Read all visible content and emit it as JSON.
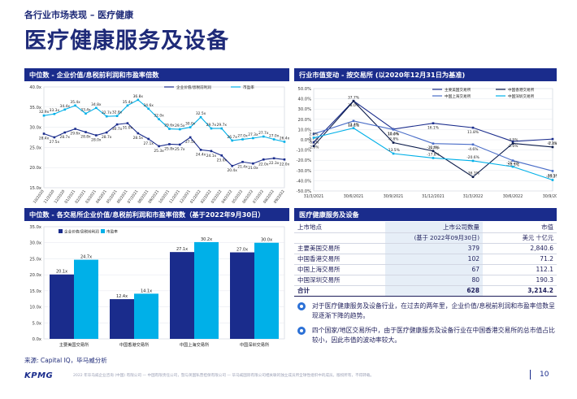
{
  "header": {
    "kicker": "各行业市场表现 – 医疗健康",
    "title": "医疗健康服务及设备"
  },
  "panels": {
    "p1_title": "中位数 - 企业价值/息税前利润和市盈率倍数",
    "p2_title": "行业市值变动 - 按交易所 (以2020年12月31日为基准)",
    "p3_title": "中位数 - 各交易所企业价值/息税前利润和市盈率倍数（基于2022年9月30日）",
    "p4_title": "医疗健康服务及设备"
  },
  "chart_data": [
    {
      "type": "line",
      "title": "",
      "ylim": [
        15,
        40
      ],
      "yticks": [
        "15.0x",
        "20.0x",
        "25.0x",
        "30.0x",
        "35.0x",
        "40.0x"
      ],
      "categories": [
        "10/2020",
        "11/2020",
        "12/2020",
        "01/2021",
        "02/2021",
        "03/2021",
        "04/2021",
        "05/2021",
        "06/2021",
        "07/2021",
        "08/2021",
        "09/2021",
        "10/2021",
        "11/2021",
        "12/2021",
        "01/2022",
        "02/2022",
        "03/2022",
        "04/2022",
        "05/2022",
        "06/2022",
        "07/2022",
        "08/2022",
        "09/2022"
      ],
      "series": [
        {
          "name": "企业价值/息税前利润",
          "color": "#1a2c8c",
          "values": [
            28.4,
            27.5,
            28.7,
            29.6,
            28.8,
            28.0,
            28.7,
            30.7,
            31.0,
            28.5,
            27.1,
            25.3,
            25.8,
            25.7,
            27.5,
            24.4,
            24.1,
            23.0,
            20.4,
            21.4,
            21.0,
            22.0,
            22.3,
            22.0
          ],
          "labels": [
            "28.4x",
            "27.5x",
            "28.7x",
            "29.6x",
            "28.8x",
            "28.0x",
            "28.7x",
            "30.7x",
            "31.0x",
            "28.5x",
            "27.1x",
            "25.3x",
            "25.8x",
            "25.7x",
            "27.5x",
            "24.4x",
            "24.1x",
            "23.0x",
            "20.4x",
            "21.4x",
            "21.0x",
            "22.0x",
            "22.3x",
            "22.0x"
          ]
        },
        {
          "name": "市盈率",
          "color": "#00b0e8",
          "values": [
            32.9,
            33.3,
            34.4,
            35.4,
            33.4,
            34.8,
            32.7,
            32.8,
            35.4,
            36.8,
            34.6,
            32.0,
            29.6,
            29.5,
            30.0,
            32.5,
            29.7,
            29.7,
            26.7,
            27.0,
            27.3,
            27.7,
            27.0,
            26.4
          ],
          "labels": [
            "32.9x",
            "33.3x",
            "34.4x",
            "35.4x",
            "33.4x",
            "34.8x",
            "32.7x",
            "32.8x",
            "35.4x",
            "36.8x",
            "34.6x",
            "32.0x",
            "29.6x",
            "29.5x",
            "30.0x",
            "32.5x",
            "29.7x",
            "29.7x",
            "26.7x",
            "27.0x",
            "27.3x",
            "27.7x",
            "27.0x",
            "26.4x"
          ]
        }
      ]
    },
    {
      "type": "line",
      "title": "",
      "ylim": [
        -50,
        50
      ],
      "yticks": [
        "-50.0%",
        "-40.0%",
        "-30.0%",
        "-20.0%",
        "-10.0%",
        "0.0%",
        "10.0%",
        "20.0%",
        "30.0%",
        "40.0%",
        "50.0%"
      ],
      "categories": [
        "31/3/2021",
        "30/6/2021",
        "30/9/2021",
        "31/12/2021",
        "31/3/2022",
        "30/6/2022",
        "30/9/2022"
      ],
      "series": [
        {
          "name": "主要美国交易所",
          "color": "#1a2c8c",
          "values": [
            -2.6,
            38.0,
            10.4,
            16.1,
            11.8,
            -1.6,
            0.7
          ],
          "labels": [
            "-2.6%",
            "38.0%",
            "10.4%",
            "16.1%",
            "11.8%",
            "-1.6%",
            "0.7%"
          ]
        },
        {
          "name": "中国香港交易所",
          "color": "#0a1a4a",
          "values": [
            -6.1,
            37.7,
            -2.8,
            -11.0,
            -36.3,
            -3.5,
            -7.1
          ],
          "labels": [
            "-6.1%",
            "37.7%",
            "-2.8%",
            "-11.0%",
            "-36.3%",
            "-3.5%",
            "-7.1%"
          ]
        },
        {
          "name": "中国上海交易所",
          "color": "#4a6dc8",
          "values": [
            5.7,
            18.4,
            10.0,
            -3.7,
            -4.6,
            -20.3,
            -30.5
          ],
          "labels": [
            "5.7%",
            "18.4%",
            "10.0%",
            "-3.7%",
            "-4.6%",
            "-20.3%",
            "-30.5%"
          ]
        },
        {
          "name": "中国深圳交易所",
          "color": "#00b0e8",
          "values": [
            2.0,
            11.4,
            -13.5,
            -17.8,
            -20.6,
            -26.3,
            -39.3
          ],
          "labels": [
            "2.0%",
            "11.4%",
            "-13.5%",
            "-17.8%",
            "-20.6%",
            "-26.3%",
            "-39.3%"
          ]
        }
      ]
    },
    {
      "type": "bar",
      "title": "",
      "ylim": [
        0,
        35
      ],
      "yticks": [
        "0.0x",
        "5.0x",
        "10.0x",
        "15.0x",
        "20.0x",
        "25.0x",
        "30.0x",
        "35.0x"
      ],
      "categories": [
        "主要美国交易所",
        "中国香港交易所",
        "中国上海交易所",
        "中国深圳交易所"
      ],
      "series": [
        {
          "name": "企业价值/息税前利润",
          "color": "#1a2c8c",
          "values": [
            20.1,
            12.4,
            27.1,
            27.0
          ],
          "labels": [
            "20.1x",
            "12.4x",
            "27.1x",
            "27.0x"
          ]
        },
        {
          "name": "市盈率",
          "color": "#00b0e8",
          "values": [
            24.7,
            14.1,
            30.2,
            30.0
          ],
          "labels": [
            "24.7x",
            "14.1x",
            "30.2x",
            "30.0x"
          ]
        }
      ]
    },
    {
      "type": "table",
      "col_headers": [
        "上市地点",
        "上市公司数量",
        "市值"
      ],
      "sub_headers": [
        "",
        "(基于 2022年09月30日)",
        "美元 十亿元"
      ],
      "rows": [
        [
          "主要美国交易所",
          "379",
          "2,840.6"
        ],
        [
          "中国香港交易所",
          "102",
          "71.2"
        ],
        [
          "中国上海交易所",
          "67",
          "112.1"
        ],
        [
          "中国深圳交易所",
          "80",
          "190.3"
        ]
      ],
      "total": [
        "合计",
        "628",
        "3,214.2"
      ]
    }
  ],
  "bullets": [
    "对于医疗健康服务及设备行业，在过去的两年里，企业价值/息税前利润和市盈率倍数呈现逐渐下降的趋势。",
    "四个国家/地区交易所中，由于医疗健康服务及设备行业在中国香港交易所的总市值占比较小，因此市值的波动率较大。"
  ],
  "footer": {
    "source": "来源: Capital IQ，毕马威分析",
    "logo": "KPMG",
    "legal": "2022 年毕马威企业咨询 (中国) 有限公司 — 中国有限责任公司，暨与英国私营担保有限公司 — 毕马威国际有限公司相关联的独立成员所全球性组织中的成员。版权所有，不得转载。",
    "page": "10"
  }
}
